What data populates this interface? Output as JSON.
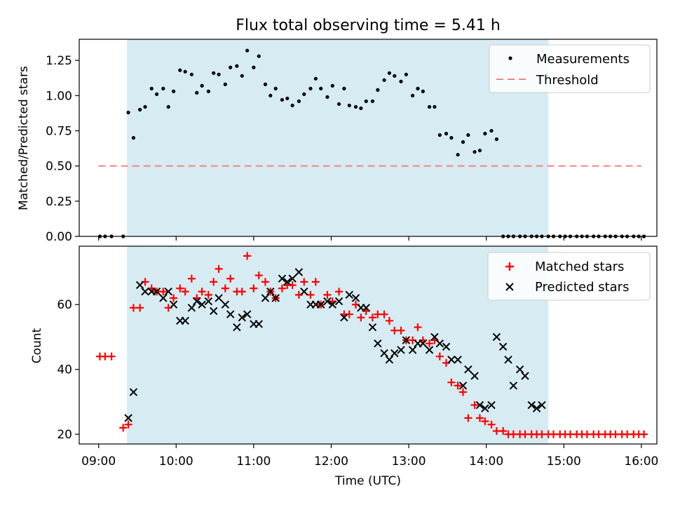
{
  "chart_data": [
    {
      "type": "scatter",
      "title": "Flux total observing time = 5.41 h",
      "xlabel": "",
      "ylabel": "Matched/Predicted stars",
      "xlim": [
        "08:45",
        "16:12"
      ],
      "ylim": [
        0,
        1.4
      ],
      "yticks": [
        "0.00",
        "0.25",
        "0.50",
        "0.75",
        "1.00",
        "1.25"
      ],
      "shaded_interval": [
        "09:22",
        "14:48"
      ],
      "legend": {
        "placement": "upper right",
        "entries": [
          "Measurements",
          "Threshold"
        ]
      },
      "colors": {
        "measurements": "#000000",
        "threshold": "#ff7f7f",
        "shade": "#add8e6"
      },
      "threshold": {
        "name": "Threshold",
        "x": [
          "09:00",
          "16:00"
        ],
        "y": 0.5
      },
      "series": [
        {
          "name": "Measurements",
          "x": [
            "09:01",
            "09:05",
            "09:10",
            "09:19",
            "09:23",
            "09:27",
            "09:32",
            "09:36",
            "09:41",
            "09:45",
            "09:50",
            "09:54",
            "09:58",
            "10:03",
            "10:07",
            "10:12",
            "10:16",
            "10:20",
            "10:25",
            "10:29",
            "10:33",
            "10:38",
            "10:42",
            "10:47",
            "10:51",
            "10:55",
            "11:00",
            "11:04",
            "11:09",
            "11:13",
            "11:17",
            "11:22",
            "11:26",
            "11:30",
            "11:35",
            "11:39",
            "11:44",
            "11:48",
            "11:52",
            "11:57",
            "12:01",
            "12:06",
            "12:10",
            "12:14",
            "12:19",
            "12:23",
            "12:27",
            "12:32",
            "12:36",
            "12:41",
            "12:45",
            "12:49",
            "12:54",
            "12:58",
            "13:03",
            "13:07",
            "13:11",
            "13:16",
            "13:20",
            "13:24",
            "13:29",
            "13:33",
            "13:38",
            "13:42",
            "13:46",
            "13:51",
            "13:55",
            "13:59",
            "14:04",
            "14:08",
            "14:13",
            "14:17",
            "14:21",
            "14:26",
            "14:30",
            "14:35",
            "14:39",
            "14:43",
            "14:48",
            "14:52",
            "14:57",
            "15:01",
            "15:05",
            "15:10",
            "15:14",
            "15:18",
            "15:23",
            "15:27",
            "15:32",
            "15:36",
            "15:40",
            "15:45",
            "15:49",
            "15:54",
            "15:58",
            "16:02"
          ],
          "y": [
            0,
            0,
            0,
            0,
            0.88,
            0.7,
            0.9,
            0.92,
            1.05,
            1.01,
            1.05,
            0.92,
            1.03,
            1.18,
            1.17,
            1.15,
            1.02,
            1.07,
            1.03,
            1.16,
            1.15,
            1.08,
            1.2,
            1.21,
            1.14,
            1.32,
            1.2,
            1.28,
            1.08,
            1.0,
            1.05,
            0.97,
            0.98,
            0.93,
            0.96,
            1.01,
            1.05,
            1.12,
            1.05,
            0.99,
            1.07,
            0.94,
            1.05,
            0.93,
            0.92,
            0.91,
            0.96,
            0.96,
            1.04,
            1.11,
            1.16,
            1.14,
            1.1,
            1.15,
            1.0,
            1.05,
            1.03,
            0.92,
            0.92,
            0.72,
            0.73,
            0.7,
            0.58,
            0.67,
            0.72,
            0.6,
            0.61,
            0.73,
            0.75,
            0.69,
            0,
            0,
            0,
            0,
            0,
            0,
            0,
            0,
            0,
            0,
            0,
            0,
            0,
            0,
            0,
            0,
            0,
            0,
            0,
            0,
            0,
            0,
            0,
            0,
            0,
            0
          ]
        }
      ]
    },
    {
      "type": "scatter",
      "title": "",
      "xlabel": "Time (UTC)",
      "ylabel": "Count",
      "xlim": [
        "08:45",
        "16:12"
      ],
      "ylim": [
        17,
        78
      ],
      "yticks": [
        "20",
        "40",
        "60"
      ],
      "xticks": [
        "09:00",
        "10:00",
        "11:00",
        "12:00",
        "13:00",
        "14:00",
        "15:00",
        "16:00"
      ],
      "shaded_interval": [
        "09:22",
        "14:48"
      ],
      "legend": {
        "placement": "upper right",
        "entries": [
          "Matched stars",
          "Predicted stars"
        ]
      },
      "colors": {
        "matched": "#ff0000",
        "predicted": "#000000",
        "shade": "#add8e6"
      },
      "series": [
        {
          "name": "Matched stars",
          "marker": "+",
          "x": [
            "09:01",
            "09:05",
            "09:10",
            "09:19",
            "09:23",
            "09:27",
            "09:32",
            "09:36",
            "09:41",
            "09:45",
            "09:50",
            "09:54",
            "09:58",
            "10:03",
            "10:07",
            "10:12",
            "10:16",
            "10:20",
            "10:25",
            "10:29",
            "10:33",
            "10:38",
            "10:42",
            "10:47",
            "10:51",
            "10:55",
            "11:00",
            "11:04",
            "11:09",
            "11:13",
            "11:17",
            "11:22",
            "11:26",
            "11:30",
            "11:35",
            "11:39",
            "11:44",
            "11:48",
            "11:52",
            "11:57",
            "12:01",
            "12:06",
            "12:10",
            "12:14",
            "12:19",
            "12:23",
            "12:27",
            "12:32",
            "12:36",
            "12:41",
            "12:45",
            "12:49",
            "12:54",
            "12:58",
            "13:03",
            "13:07",
            "13:11",
            "13:16",
            "13:20",
            "13:24",
            "13:29",
            "13:33",
            "13:38",
            "13:42",
            "13:46",
            "13:51",
            "13:55",
            "13:59",
            "14:04",
            "14:08",
            "14:13",
            "14:17",
            "14:21",
            "14:26",
            "14:30",
            "14:35",
            "14:39",
            "14:43",
            "14:48",
            "14:52",
            "14:57",
            "15:01",
            "15:05",
            "15:10",
            "15:14",
            "15:18",
            "15:23",
            "15:27",
            "15:32",
            "15:36",
            "15:40",
            "15:45",
            "15:49",
            "15:54",
            "15:58",
            "16:02"
          ],
          "y": [
            44,
            44,
            44,
            22,
            23,
            59,
            59,
            67,
            65,
            64,
            64,
            59,
            62,
            65,
            64,
            68,
            62,
            64,
            63,
            67,
            71,
            65,
            68,
            64,
            64,
            75,
            65,
            69,
            67,
            64,
            62,
            65,
            66,
            66,
            63,
            67,
            63,
            67,
            60,
            63,
            61,
            64,
            57,
            57,
            60,
            56,
            58,
            56,
            57,
            57,
            55,
            52,
            52,
            49,
            49,
            53,
            49,
            48,
            49,
            44,
            42,
            36,
            35,
            33,
            25,
            29,
            25,
            24,
            23,
            21,
            21,
            20,
            20,
            20,
            20,
            20,
            20,
            20,
            20,
            20,
            20,
            20,
            20,
            20,
            20,
            20,
            20,
            20,
            20,
            20,
            20,
            20,
            20,
            20,
            20,
            20
          ]
        },
        {
          "name": "Predicted stars",
          "marker": "x",
          "x": [
            "09:23",
            "09:27",
            "09:32",
            "09:36",
            "09:41",
            "09:45",
            "09:50",
            "09:54",
            "09:58",
            "10:03",
            "10:07",
            "10:12",
            "10:16",
            "10:20",
            "10:25",
            "10:29",
            "10:33",
            "10:38",
            "10:42",
            "10:47",
            "10:51",
            "10:55",
            "11:00",
            "11:04",
            "11:09",
            "11:13",
            "11:17",
            "11:22",
            "11:26",
            "11:30",
            "11:35",
            "11:39",
            "11:44",
            "11:48",
            "11:52",
            "11:57",
            "12:01",
            "12:06",
            "12:10",
            "12:14",
            "12:19",
            "12:23",
            "12:27",
            "12:32",
            "12:36",
            "12:41",
            "12:45",
            "12:49",
            "12:54",
            "12:58",
            "13:03",
            "13:07",
            "13:11",
            "13:16",
            "13:20",
            "13:24",
            "13:29",
            "13:33",
            "13:38",
            "13:42",
            "13:46",
            "13:51",
            "13:55",
            "13:59",
            "14:04",
            "14:08",
            "14:13",
            "14:17",
            "14:21",
            "14:26",
            "14:30",
            "14:35",
            "14:39",
            "14:43"
          ],
          "y": [
            25,
            33,
            66,
            64,
            64,
            64,
            62,
            64,
            60,
            55,
            55,
            59,
            61,
            60,
            61,
            58,
            62,
            60,
            57,
            53,
            56,
            57,
            54,
            54,
            62,
            64,
            62,
            68,
            67,
            68,
            70,
            64,
            60,
            60,
            60,
            61,
            60,
            61,
            56,
            63,
            62,
            59,
            59,
            53,
            48,
            45,
            43,
            45,
            46,
            49,
            46,
            48,
            48,
            46,
            50,
            48,
            47,
            43,
            43,
            35,
            40,
            38,
            29,
            28,
            29,
            50,
            47,
            43,
            35,
            40,
            38,
            29,
            28,
            29
          ]
        }
      ]
    }
  ]
}
